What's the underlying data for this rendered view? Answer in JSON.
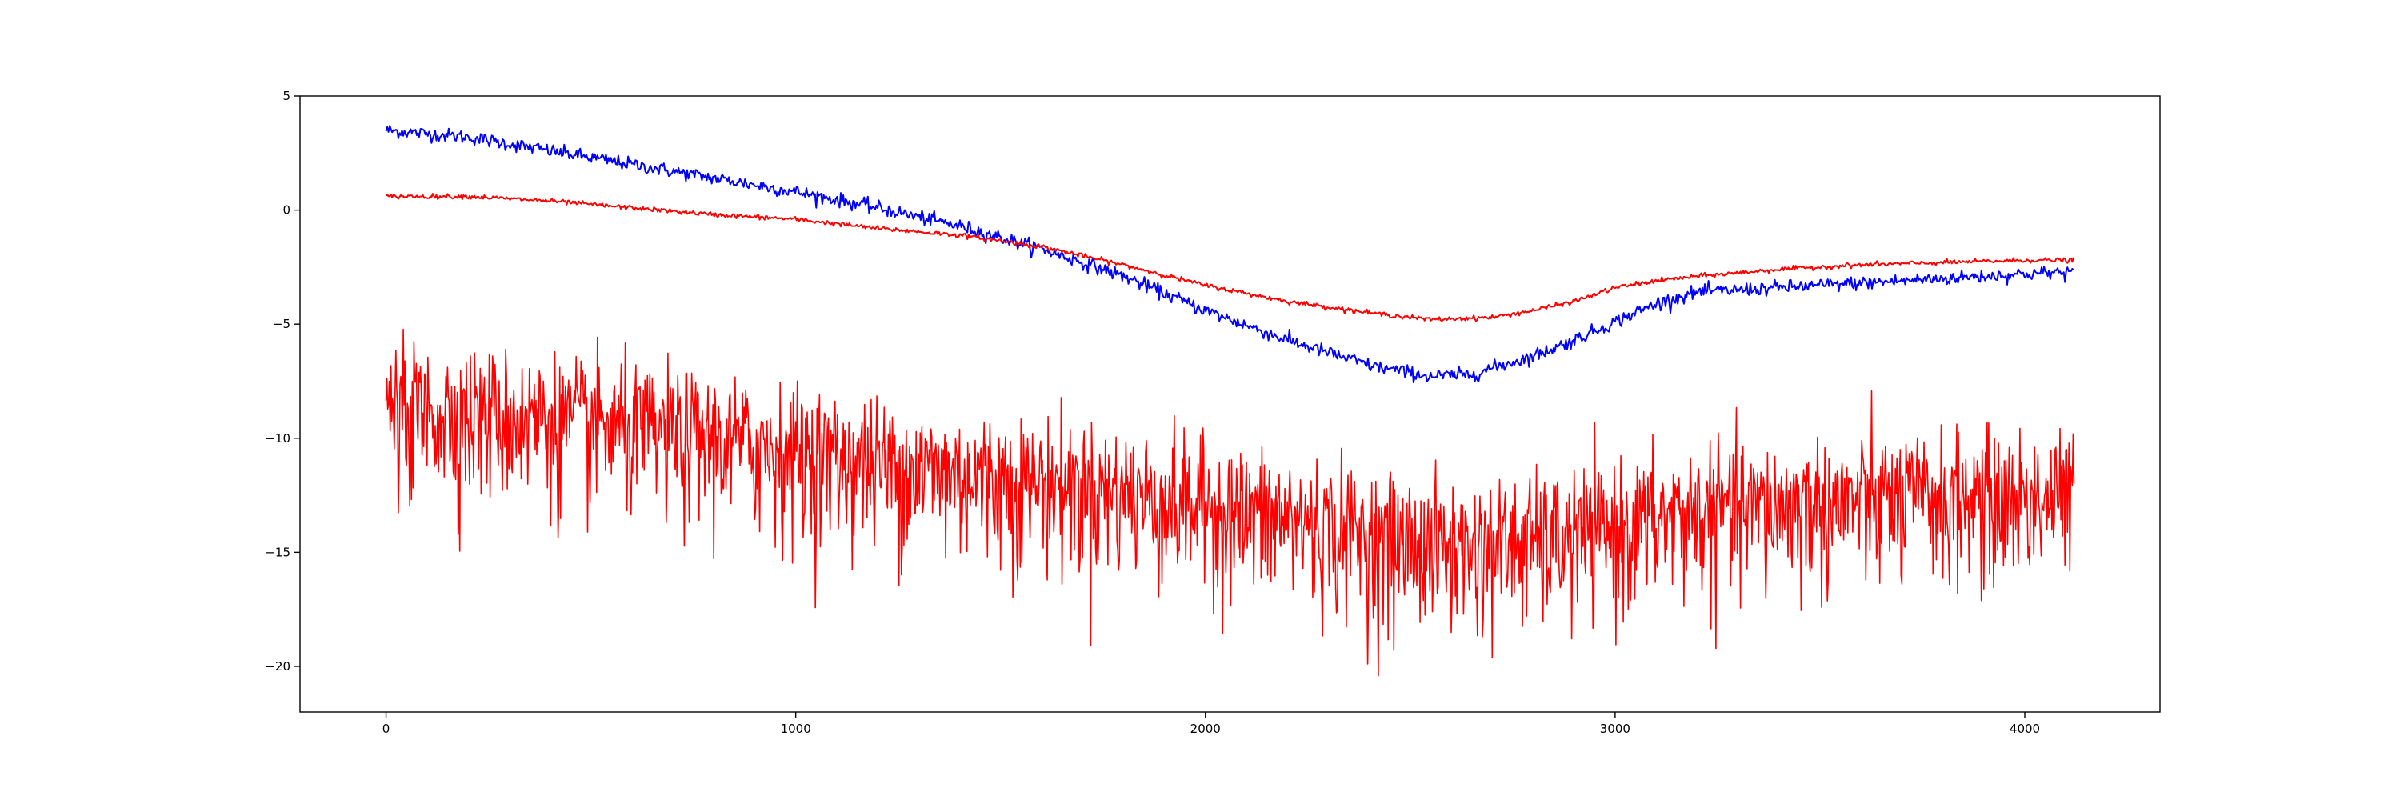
{
  "chart_data": {
    "type": "line",
    "title": "",
    "xlabel": "",
    "ylabel": "",
    "xlim": [
      -210,
      4330
    ],
    "ylim": [
      -22,
      5
    ],
    "grid": false,
    "legend": "none",
    "x_ticks": [
      0,
      1000,
      2000,
      3000,
      4000
    ],
    "y_ticks": [
      5,
      0,
      -5,
      -10,
      -15,
      -20
    ],
    "x_tick_labels": [
      "0",
      "1000",
      "2000",
      "3000",
      "4000"
    ],
    "y_tick_labels": [
      "5",
      "0",
      "−5",
      "−10",
      "−15",
      "−20"
    ],
    "x_max": 4120,
    "series": [
      {
        "color": "#0000ff",
        "noise": 0.15,
        "x": [
          0,
          200,
          400,
          600,
          800,
          1000,
          1200,
          1400,
          1600,
          1800,
          2000,
          2200,
          2400,
          2550,
          2650,
          2800,
          2900,
          3000,
          3100,
          3200,
          3400,
          3600,
          3800,
          4000,
          4120
        ],
        "y": [
          3.5,
          3.2,
          2.6,
          2.0,
          1.4,
          0.8,
          0.1,
          -0.7,
          -1.7,
          -2.9,
          -4.4,
          -5.7,
          -6.8,
          -7.3,
          -7.2,
          -6.4,
          -5.7,
          -4.9,
          -4.1,
          -3.6,
          -3.4,
          -3.2,
          -3.0,
          -2.8,
          -2.7
        ]
      },
      {
        "color": "#ff0000",
        "noise": 0.05,
        "x": [
          0,
          200,
          400,
          600,
          800,
          1000,
          1200,
          1400,
          1600,
          1800,
          2000,
          2200,
          2400,
          2550,
          2700,
          2800,
          2900,
          3000,
          3100,
          3200,
          3400,
          3600,
          3800,
          4000,
          4120
        ],
        "y": [
          0.6,
          0.6,
          0.4,
          0.1,
          -0.2,
          -0.4,
          -0.8,
          -1.1,
          -1.6,
          -2.4,
          -3.3,
          -4.0,
          -4.5,
          -4.8,
          -4.7,
          -4.4,
          -4.0,
          -3.4,
          -3.1,
          -2.9,
          -2.6,
          -2.4,
          -2.3,
          -2.2,
          -2.2
        ]
      },
      {
        "color": "#ff0000",
        "noise": 1.3,
        "x": [
          0,
          200,
          400,
          600,
          800,
          1000,
          1200,
          1400,
          1600,
          1800,
          2000,
          2200,
          2400,
          2600,
          2800,
          3000,
          3200,
          3400,
          3600,
          3800,
          4000,
          4120
        ],
        "y": [
          -8.6,
          -8.7,
          -9.0,
          -9.5,
          -9.9,
          -10.4,
          -10.9,
          -11.4,
          -11.8,
          -12.2,
          -12.8,
          -13.4,
          -14.1,
          -14.6,
          -14.4,
          -13.8,
          -13.1,
          -12.8,
          -12.6,
          -12.5,
          -12.4,
          -12.4
        ]
      }
    ]
  }
}
